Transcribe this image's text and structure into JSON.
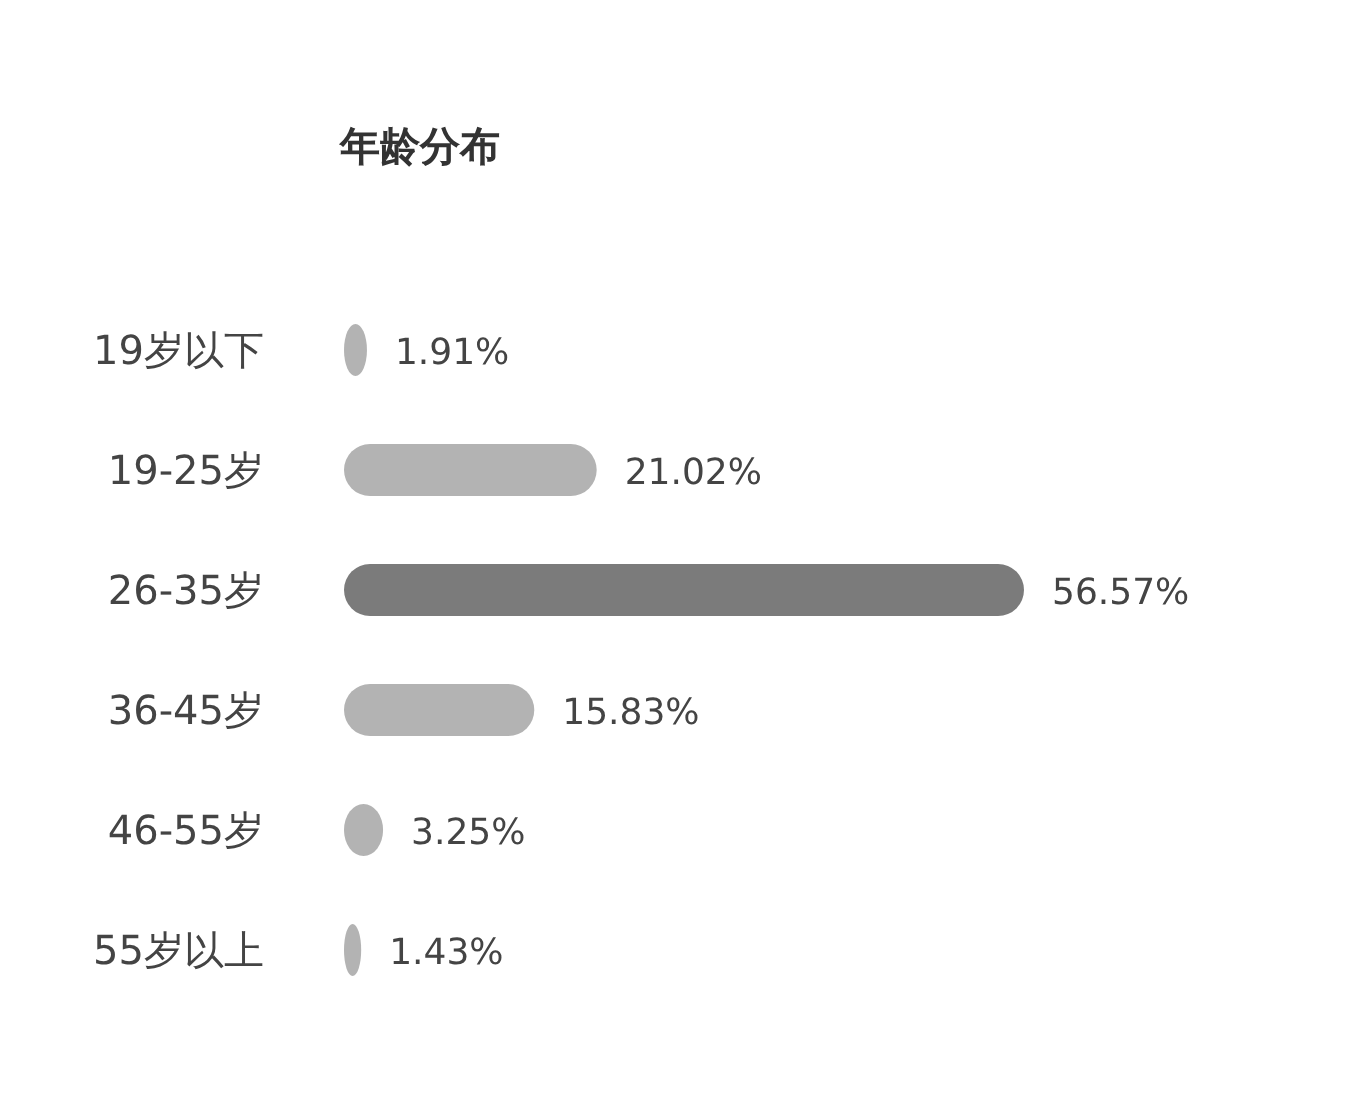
{
  "chart_data": {
    "type": "bar",
    "orientation": "horizontal",
    "title": "年龄分布",
    "categories": [
      "19岁以下",
      "19-25岁",
      "26-35岁",
      "36-45岁",
      "46-55岁",
      "55岁以上"
    ],
    "values": [
      1.91,
      21.02,
      56.57,
      15.83,
      3.25,
      1.43
    ],
    "value_labels": [
      "1.91%",
      "21.02%",
      "56.57%",
      "15.83%",
      "3.25%",
      "1.43%"
    ],
    "colors": [
      "#b3b3b3",
      "#b3b3b3",
      "#7b7b7b",
      "#b3b3b3",
      "#b3b3b3",
      "#b3b3b3"
    ]
  }
}
